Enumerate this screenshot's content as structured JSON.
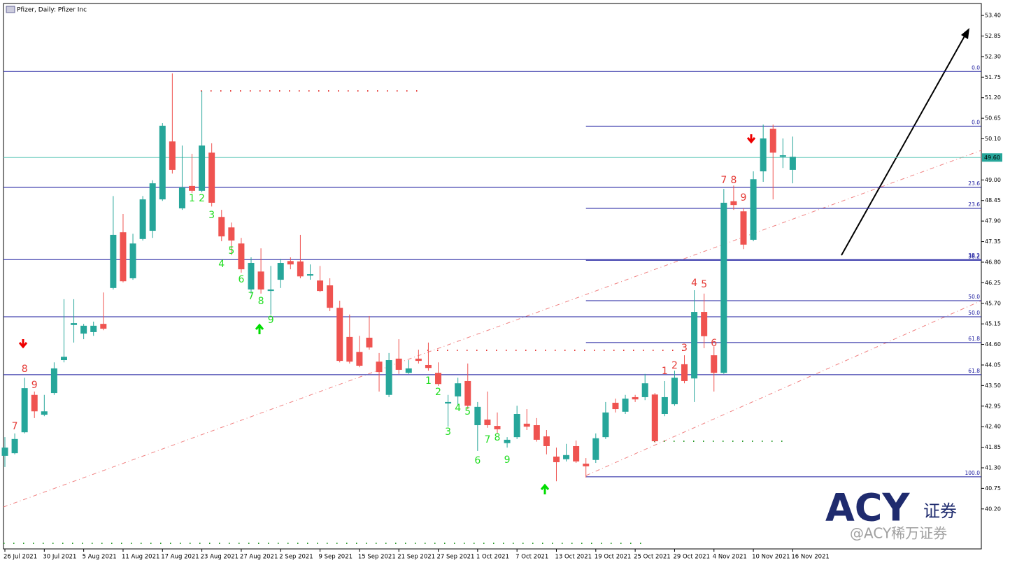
{
  "chart_data": {
    "type": "candlestick",
    "title": "Pfizer, Daily:  Pfizer Inc",
    "up_color": "#26a69a",
    "down_color": "#ef5350",
    "categories": [
      "26 Jul 2021",
      null,
      null,
      null,
      "30 Jul 2021",
      null,
      null,
      null,
      "5 Aug 2021",
      null,
      null,
      null,
      "11 Aug 2021",
      null,
      null,
      null,
      "17 Aug 2021",
      null,
      null,
      null,
      "23 Aug 2021",
      null,
      null,
      null,
      "27 Aug 2021",
      null,
      null,
      null,
      "2 Sep 2021",
      null,
      null,
      null,
      "9 Sep 2021",
      null,
      null,
      null,
      "15 Sep 2021",
      null,
      null,
      null,
      "21 Sep 2021",
      null,
      null,
      null,
      "27 Sep 2021",
      null,
      null,
      null,
      "1 Oct 2021",
      null,
      null,
      null,
      "7 Oct 2021",
      null,
      null,
      null,
      "13 Oct 2021",
      null,
      null,
      null,
      "19 Oct 2021",
      null,
      null,
      null,
      "25 Oct 2021",
      null,
      null,
      null,
      "29 Oct 2021",
      null,
      null,
      null,
      "4 Nov 2021",
      null,
      null,
      null,
      "10 Nov 2021",
      null,
      null,
      null,
      "16 Nov 2021"
    ],
    "open": [
      41.62,
      41.69,
      42.25,
      43.25,
      42.72,
      43.3,
      44.18,
      45.12,
      44.89,
      44.93,
      45.15,
      46.11,
      47.6,
      46.37,
      47.42,
      47.64,
      48.48,
      50.03,
      48.24,
      48.84,
      48.71,
      49.73,
      48.01,
      47.73,
      47.3,
      46.07,
      46.55,
      46.03,
      46.33,
      46.83,
      46.82,
      46.44,
      46.31,
      46.18,
      45.58,
      44.8,
      44.4,
      44.78,
      44.14,
      43.25,
      44.22,
      43.84,
      44.22,
      44.05,
      43.84,
      43.02,
      43.21,
      43.62,
      42.44,
      42.59,
      42.42,
      41.96,
      42.12,
      42.48,
      42.44,
      42.14,
      41.6,
      41.53,
      41.88,
      41.41,
      41.51,
      42.12,
      43.04,
      42.8,
      43.19,
      43.19,
      43.26,
      42.74,
      43.0,
      44.07,
      43.69,
      45.47,
      44.31,
      43.84,
      48.43,
      48.16,
      47.4,
      49.23,
      50.37,
      49.62,
      49.27
    ],
    "high": [
      42.12,
      42.22,
      43.71,
      43.34,
      43.25,
      44.12,
      45.81,
      45.81,
      45.15,
      45.21,
      45.99,
      48.57,
      48.09,
      47.56,
      48.57,
      48.99,
      50.52,
      51.85,
      49.92,
      49.7,
      51.38,
      49.98,
      48.2,
      47.86,
      47.45,
      46.93,
      47.17,
      46.7,
      46.89,
      46.93,
      47.53,
      46.74,
      46.7,
      46.37,
      45.77,
      45.4,
      44.83,
      45.36,
      44.37,
      44.37,
      44.74,
      44.18,
      44.46,
      44.65,
      44.12,
      43.25,
      43.71,
      44.09,
      43.06,
      43.34,
      42.78,
      42.12,
      42.96,
      42.87,
      42.63,
      42.31,
      41.84,
      41.94,
      42.03,
      41.56,
      42.22,
      43.06,
      43.15,
      43.25,
      43.25,
      43.81,
      43.3,
      43.62,
      43.9,
      44.31,
      46.05,
      45.96,
      44.55,
      48.76,
      48.85,
      48.24,
      49.23,
      50.48,
      50.48,
      50.11,
      50.16
    ],
    "low": [
      41.32,
      41.66,
      42.22,
      42.63,
      42.68,
      43.25,
      44.12,
      44.65,
      44.74,
      44.83,
      44.98,
      46.07,
      46.26,
      46.33,
      47.38,
      47.45,
      48.44,
      49.17,
      48.2,
      48.65,
      48.67,
      48.29,
      47.36,
      46.99,
      46.52,
      45.96,
      45.96,
      45.4,
      46.11,
      46.61,
      46.37,
      46.33,
      46.0,
      45.49,
      44.12,
      44.09,
      43.99,
      44.46,
      43.34,
      43.19,
      43.81,
      43.81,
      44.09,
      43.9,
      43.49,
      42.4,
      42.96,
      42.87,
      41.75,
      42.37,
      42.22,
      41.84,
      42.07,
      42.31,
      42.0,
      41.66,
      40.94,
      41.47,
      41.43,
      41.04,
      41.43,
      42.07,
      42.78,
      42.74,
      43.06,
      43.11,
      41.97,
      42.68,
      42.96,
      43.56,
      43.06,
      44.5,
      43.34,
      43.81,
      48.2,
      47.15,
      47.36,
      48.95,
      48.48,
      49.32,
      48.91
    ],
    "close": [
      41.84,
      42.07,
      43.43,
      42.81,
      42.81,
      43.96,
      44.27,
      45.17,
      45.1,
      45.1,
      45.02,
      47.53,
      46.29,
      47.3,
      48.48,
      48.91,
      50.45,
      49.27,
      48.8,
      48.71,
      49.92,
      48.39,
      47.49,
      47.38,
      46.61,
      46.78,
      46.07,
      46.07,
      46.78,
      46.74,
      46.42,
      46.48,
      46.03,
      45.58,
      44.16,
      44.14,
      44.03,
      44.52,
      43.86,
      44.18,
      43.92,
      43.96,
      44.16,
      43.97,
      43.54,
      43.06,
      43.56,
      42.96,
      42.93,
      42.44,
      42.33,
      42.05,
      42.74,
      42.4,
      42.05,
      41.88,
      41.45,
      41.64,
      41.47,
      41.34,
      42.09,
      42.78,
      42.87,
      43.15,
      43.13,
      43.56,
      42.01,
      43.19,
      43.71,
      43.62,
      45.47,
      44.82,
      43.84,
      48.39,
      48.33,
      47.27,
      49.02,
      50.11,
      49.73,
      49.66,
      49.62
    ],
    "ylim": [
      39.13,
      53.72
    ],
    "yticks": [
      {
        "value": 40.2,
        "label": "40.20"
      },
      40.75,
      {
        "value": 41.3,
        "label": "41.30"
      },
      41.85,
      {
        "value": 42.4,
        "label": "42.40"
      },
      42.95,
      {
        "value": 43.5,
        "label": "43.50"
      },
      44.05,
      {
        "value": 44.6,
        "label": "44.60"
      },
      45.15,
      {
        "value": 45.7,
        "label": "45.70"
      },
      46.25,
      {
        "value": 46.8,
        "label": "46.80"
      },
      47.35,
      {
        "value": 47.9,
        "label": "47.90"
      },
      48.45,
      {
        "value": 49.0,
        "label": "49.00"
      },
      {
        "value": 50.1,
        "label": "50.10"
      },
      50.65,
      {
        "value": 51.2,
        "label": "51.20"
      },
      51.75,
      {
        "value": 52.3,
        "label": "52.30"
      },
      52.85,
      {
        "value": 53.4,
        "label": "53.40"
      }
    ],
    "current_price": {
      "value": 49.6,
      "label": "49.60"
    },
    "fib_retracements": [
      {
        "levels": [
          {
            "level": "0.0",
            "price": 51.9
          },
          {
            "level": "23.6",
            "price": 48.8
          },
          {
            "level": "38.2",
            "price": 46.87
          },
          {
            "level": "50.0",
            "price": 45.34
          },
          {
            "level": "61.8",
            "price": 43.79
          }
        ]
      },
      {
        "levels": [
          {
            "level": "0.0",
            "price": 50.44
          },
          {
            "level": "23.6",
            "price": 48.24
          },
          {
            "level": "38.2",
            "price": 46.85
          },
          {
            "level": "50.0",
            "price": 45.77
          },
          {
            "level": "61.8",
            "price": 44.65
          },
          {
            "level": "100.0",
            "price": 41.06
          }
        ]
      }
    ],
    "annotations": [
      {
        "text": "7",
        "index": 1,
        "price": 42.4,
        "color": "#e53935"
      },
      {
        "text": "8",
        "index": 2,
        "price": 43.94,
        "color": "#e53935"
      },
      {
        "text": "9",
        "index": 3,
        "price": 43.51,
        "color": "#e53935"
      },
      {
        "text": "1",
        "index": 19,
        "price": 48.5,
        "color": "#22dd22"
      },
      {
        "text": "2",
        "index": 20,
        "price": 48.5,
        "color": "#22dd22"
      },
      {
        "text": "3",
        "index": 21,
        "price": 48.05,
        "color": "#22dd22"
      },
      {
        "text": "4",
        "index": 22,
        "price": 46.74,
        "color": "#22dd22"
      },
      {
        "text": "5",
        "index": 23,
        "price": 47.1,
        "color": "#22dd22"
      },
      {
        "text": "6",
        "index": 24,
        "price": 46.33,
        "color": "#22dd22"
      },
      {
        "text": "7",
        "index": 25,
        "price": 45.88,
        "color": "#22dd22"
      },
      {
        "text": "8",
        "index": 26,
        "price": 45.75,
        "color": "#22dd22"
      },
      {
        "text": "9",
        "index": 27,
        "price": 45.25,
        "color": "#22dd22"
      },
      {
        "text": "1",
        "index": 43,
        "price": 43.62,
        "color": "#22dd22"
      },
      {
        "text": "2",
        "index": 44,
        "price": 43.32,
        "color": "#22dd22"
      },
      {
        "text": "3",
        "index": 45,
        "price": 42.25,
        "color": "#22dd22"
      },
      {
        "text": "4",
        "index": 46,
        "price": 42.89,
        "color": "#22dd22"
      },
      {
        "text": "5",
        "index": 47,
        "price": 42.8,
        "color": "#22dd22"
      },
      {
        "text": "6",
        "index": 48,
        "price": 41.49,
        "color": "#22dd22"
      },
      {
        "text": "7",
        "index": 49,
        "price": 42.05,
        "color": "#22dd22"
      },
      {
        "text": "8",
        "index": 50,
        "price": 42.1,
        "color": "#22dd22"
      },
      {
        "text": "9",
        "index": 51,
        "price": 41.51,
        "color": "#22dd22"
      },
      {
        "text": "1",
        "index": 67,
        "price": 43.88,
        "color": "#e53935"
      },
      {
        "text": "2",
        "index": 68,
        "price": 44.03,
        "color": "#e53935"
      },
      {
        "text": "3",
        "index": 69,
        "price": 44.5,
        "color": "#e53935"
      },
      {
        "text": "4",
        "index": 70,
        "price": 46.24,
        "color": "#e53935"
      },
      {
        "text": "5",
        "index": 71,
        "price": 46.2,
        "color": "#e53935"
      },
      {
        "text": "6",
        "index": 72,
        "price": 44.63,
        "color": "#e53935"
      },
      {
        "text": "7",
        "index": 73,
        "price": 48.99,
        "color": "#e53935"
      },
      {
        "text": "8",
        "index": 74,
        "price": 48.99,
        "color": "#e53935"
      },
      {
        "text": "9",
        "index": 75,
        "price": 48.52,
        "color": "#e53935"
      }
    ],
    "watermark": {
      "logo": "ACY",
      "tagline": "证券",
      "handle": "@ACY稀万证券"
    }
  }
}
